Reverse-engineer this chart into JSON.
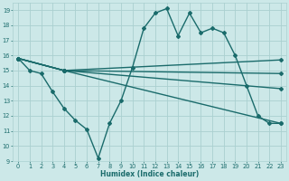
{
  "xlabel": "Humidex (Indice chaleur)",
  "xlim": [
    -0.5,
    23.5
  ],
  "ylim": [
    9,
    19.5
  ],
  "yticks": [
    9,
    10,
    11,
    12,
    13,
    14,
    15,
    16,
    17,
    18,
    19
  ],
  "xticks": [
    0,
    1,
    2,
    3,
    4,
    5,
    6,
    7,
    8,
    9,
    10,
    11,
    12,
    13,
    14,
    15,
    16,
    17,
    18,
    19,
    20,
    21,
    22,
    23
  ],
  "background_color": "#cce8e8",
  "grid_color": "#aad0d0",
  "line_color": "#1a6b6b",
  "line_width": 1.0,
  "marker": "D",
  "marker_size": 2.0,
  "lines": [
    {
      "x": [
        0,
        1,
        2,
        3,
        4,
        5,
        6,
        7,
        8,
        9,
        10,
        11,
        12,
        13,
        14,
        15,
        16,
        17,
        18,
        19,
        20,
        21,
        22,
        23
      ],
      "y": [
        15.8,
        15.0,
        14.8,
        13.6,
        12.5,
        11.7,
        11.1,
        9.2,
        11.5,
        13.0,
        15.2,
        17.8,
        18.8,
        19.1,
        17.3,
        18.8,
        17.5,
        17.8,
        17.5,
        16.0,
        14.0,
        12.0,
        11.5,
        11.5
      ]
    },
    {
      "x": [
        0,
        4,
        23
      ],
      "y": [
        15.8,
        15.0,
        15.7
      ]
    },
    {
      "x": [
        0,
        4,
        23
      ],
      "y": [
        15.8,
        15.0,
        14.8
      ]
    },
    {
      "x": [
        0,
        4,
        23
      ],
      "y": [
        15.8,
        15.0,
        13.8
      ]
    },
    {
      "x": [
        0,
        4,
        23
      ],
      "y": [
        15.8,
        15.0,
        11.5
      ]
    }
  ]
}
